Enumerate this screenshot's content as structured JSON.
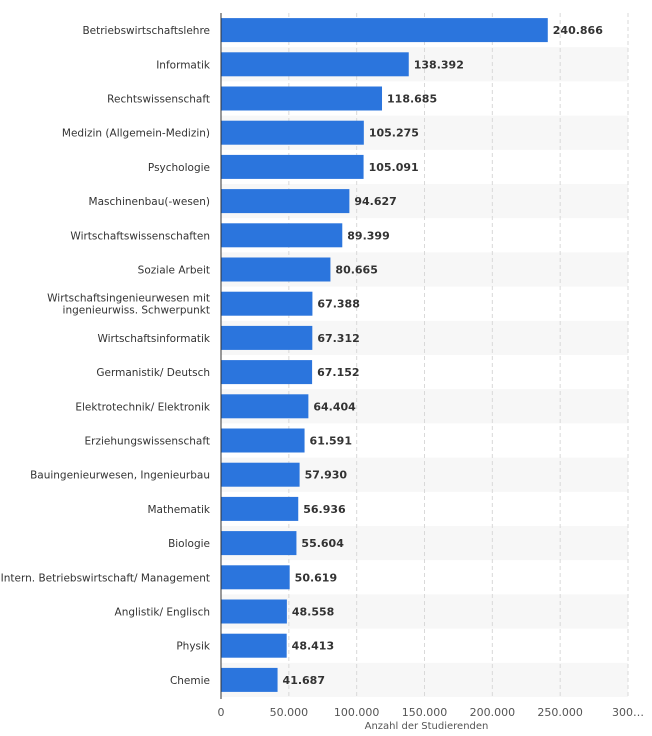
{
  "chart_data": {
    "type": "bar",
    "orientation": "horizontal",
    "categories": [
      "Betriebswirtschaftslehre",
      "Informatik",
      "Rechtswissenschaft",
      "Medizin (Allgemein-Medizin)",
      "Psychologie",
      "Maschinenbau(-wesen)",
      "Wirtschaftswissenschaften",
      "Soziale Arbeit",
      "Wirtschaftsingenieurwesen mit ingenieurwiss. Schwerpunkt",
      "Wirtschaftsinformatik",
      "Germanistik/ Deutsch",
      "Elektrotechnik/ Elektronik",
      "Erziehungswissenschaft",
      "Bauingenieurwesen, Ingenieurbau",
      "Mathematik",
      "Biologie",
      "Intern. Betriebswirtschaft/ Management",
      "Anglistik/ Englisch",
      "Physik",
      "Chemie"
    ],
    "category_lines": [
      [
        "Betriebswirtschaftslehre"
      ],
      [
        "Informatik"
      ],
      [
        "Rechtswissenschaft"
      ],
      [
        "Medizin (Allgemein-Medizin)"
      ],
      [
        "Psychologie"
      ],
      [
        "Maschinenbau(-wesen)"
      ],
      [
        "Wirtschaftswissenschaften"
      ],
      [
        "Soziale Arbeit"
      ],
      [
        "Wirtschaftsingenieurwesen mit",
        "ingenieurwiss. Schwerpunkt"
      ],
      [
        "Wirtschaftsinformatik"
      ],
      [
        "Germanistik/ Deutsch"
      ],
      [
        "Elektrotechnik/ Elektronik"
      ],
      [
        "Erziehungswissenschaft"
      ],
      [
        "Bauingenieurwesen, Ingenieurbau"
      ],
      [
        "Mathematik"
      ],
      [
        "Biologie"
      ],
      [
        "Intern. Betriebswirtschaft/ Management"
      ],
      [
        "Anglistik/ Englisch"
      ],
      [
        "Physik"
      ],
      [
        "Chemie"
      ]
    ],
    "values": [
      240866,
      138392,
      118685,
      105275,
      105091,
      94627,
      89399,
      80665,
      67388,
      67312,
      67152,
      64404,
      61591,
      57930,
      56936,
      55604,
      50619,
      48558,
      48413,
      41687
    ],
    "value_labels": [
      "240.866",
      "138.392",
      "118.685",
      "105.275",
      "105.091",
      "94.627",
      "89.399",
      "80.665",
      "67.388",
      "67.312",
      "67.152",
      "64.404",
      "61.591",
      "57.930",
      "56.936",
      "55.604",
      "50.619",
      "48.558",
      "48.413",
      "41.687"
    ],
    "x_ticks": [
      0,
      50000,
      100000,
      150000,
      200000,
      250000,
      300000
    ],
    "x_tick_labels": [
      "0",
      "50.000",
      "100.000",
      "150.000",
      "200.000",
      "250.000",
      "300…"
    ],
    "xlabel": "Anzahl der Studierenden",
    "xlim": [
      0,
      300000
    ],
    "grid": true,
    "colors": {
      "bar": "#2b75dd",
      "stripe": "#f7f7f7",
      "grid": "#d9d9d9",
      "axis": "#333333"
    }
  }
}
